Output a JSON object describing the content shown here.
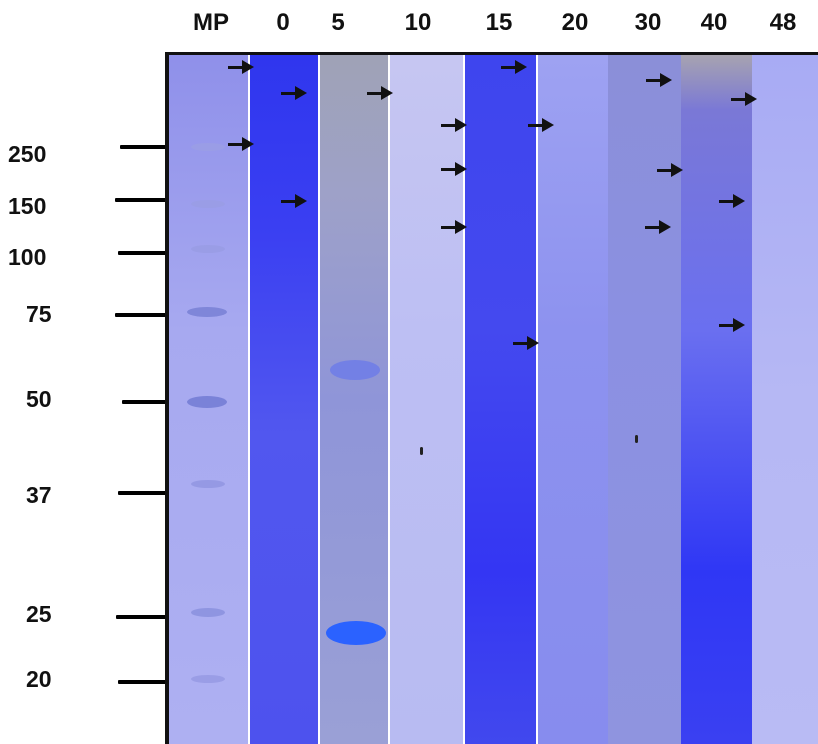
{
  "lane_labels": [
    "MP",
    "0",
    "5",
    "10",
    "15",
    "20",
    "30",
    "40",
    "48"
  ],
  "marker_labels": [
    "250",
    "150",
    "100",
    "75",
    "50",
    "37",
    "25",
    "20"
  ],
  "colors": {
    "gel_base": "#8a8df0",
    "marker_band": "#7a82d8",
    "arrow": "#111111",
    "tick": "#000000"
  }
}
